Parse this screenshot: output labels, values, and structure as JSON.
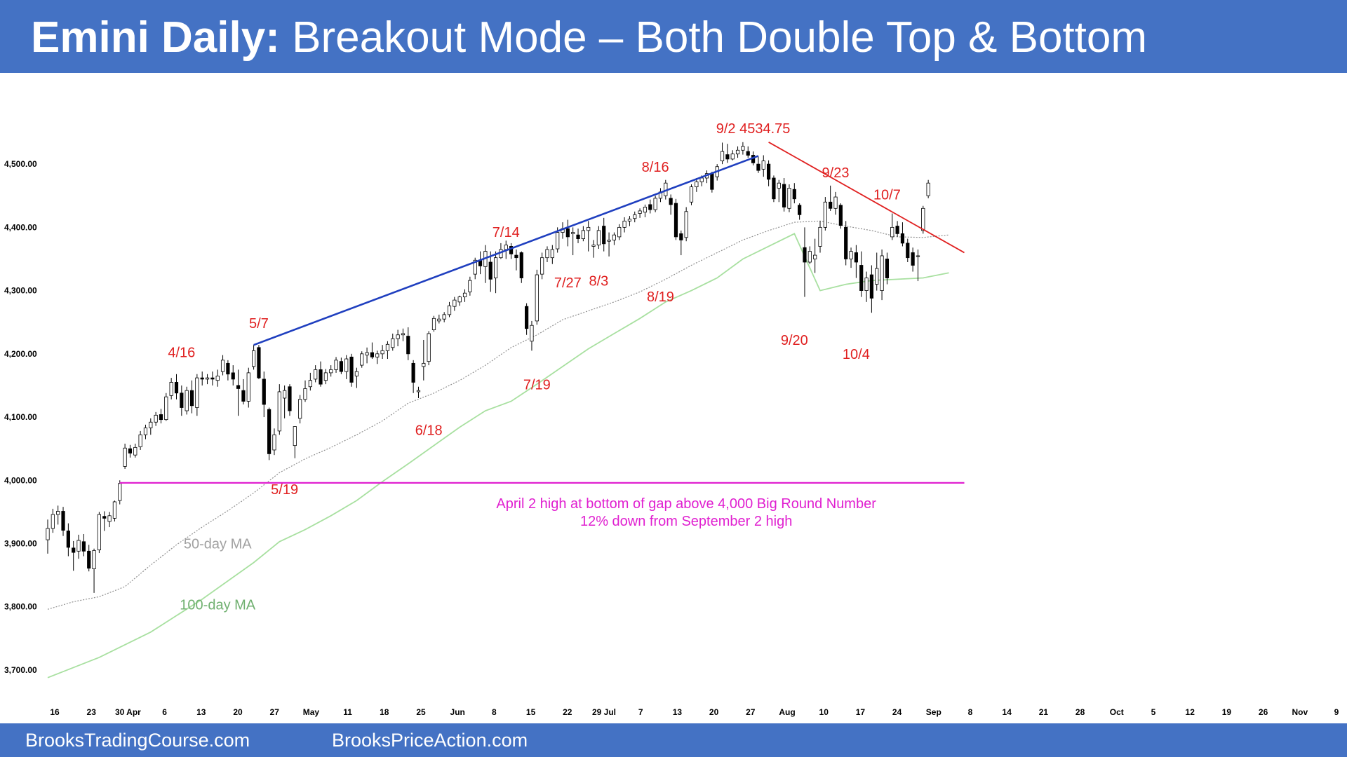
{
  "header": {
    "title_bold": "Emini Daily:",
    "title_rest": " Breakout Mode – Both Double Top & Bottom"
  },
  "footer": {
    "left": "BrooksTradingCourse.com",
    "right": "BrooksPriceAction.com"
  },
  "colors": {
    "header_bg": "#4472c4",
    "bull_candle": "#ffffff",
    "bear_candle": "#000000",
    "ma50": "#909090",
    "ma100": "#a8e0a0",
    "upper_trendline": "#1f3fbf",
    "down_trendline": "#e02020",
    "support_line": "#e020d0",
    "annotation": "#e02020"
  },
  "chart_data": {
    "type": "candlestick",
    "title": "",
    "xlabel": "",
    "ylabel": "",
    "ylim": [
      3680,
      4560
    ],
    "y_ticks": [
      "3,700.00",
      "3,800.00",
      "3,900.00",
      "4,000.00",
      "4,100.00",
      "4,200.00",
      "4,300.00",
      "4,400.00",
      "4,500.00"
    ],
    "y_tick_values": [
      3700,
      3800,
      3900,
      4000,
      4100,
      4200,
      4300,
      4400,
      4500
    ],
    "x_ticks": [
      "16",
      "23",
      "30 Apr",
      "6",
      "13",
      "20",
      "27",
      "May",
      "11",
      "18",
      "25",
      "Jun",
      "8",
      "15",
      "22",
      "29 Jul",
      "7",
      "13",
      "20",
      "27",
      "Aug",
      "10",
      "17",
      "24",
      "Sep",
      "8",
      "14",
      "21",
      "28",
      "Oct",
      "5",
      "12",
      "19",
      "26",
      "Nov",
      "9"
    ],
    "grid": false,
    "candles": [
      [
        3906,
        3938,
        3884,
        3924
      ],
      [
        3924,
        3955,
        3917,
        3946
      ],
      [
        3946,
        3960,
        3930,
        3951
      ],
      [
        3951,
        3958,
        3912,
        3921
      ],
      [
        3920,
        3932,
        3880,
        3894
      ],
      [
        3893,
        3904,
        3857,
        3886
      ],
      [
        3888,
        3914,
        3876,
        3905
      ],
      [
        3903,
        3915,
        3880,
        3888
      ],
      [
        3888,
        3898,
        3856,
        3861
      ],
      [
        3860,
        3892,
        3822,
        3889
      ],
      [
        3890,
        3950,
        3885,
        3946
      ],
      [
        3943,
        3951,
        3920,
        3940
      ],
      [
        3935,
        3950,
        3926,
        3944
      ],
      [
        3940,
        3968,
        3935,
        3966
      ],
      [
        3968,
        4000,
        3962,
        3995
      ],
      [
        4022,
        4058,
        4018,
        4051
      ],
      [
        4050,
        4056,
        4036,
        4043
      ],
      [
        4040,
        4058,
        4036,
        4052
      ],
      [
        4053,
        4078,
        4048,
        4072
      ],
      [
        4072,
        4088,
        4065,
        4083
      ],
      [
        4083,
        4098,
        4072,
        4092
      ],
      [
        4092,
        4108,
        4086,
        4103
      ],
      [
        4104,
        4113,
        4090,
        4096
      ],
      [
        4096,
        4138,
        4094,
        4132
      ],
      [
        4134,
        4162,
        4128,
        4155
      ],
      [
        4155,
        4168,
        4128,
        4138
      ],
      [
        4138,
        4150,
        4102,
        4115
      ],
      [
        4110,
        4148,
        4104,
        4142
      ],
      [
        4142,
        4158,
        4106,
        4118
      ],
      [
        4115,
        4168,
        4102,
        4162
      ],
      [
        4162,
        4172,
        4150,
        4160
      ],
      [
        4160,
        4168,
        4152,
        4162
      ],
      [
        4162,
        4172,
        4150,
        4160
      ],
      [
        4158,
        4175,
        4148,
        4165
      ],
      [
        4172,
        4198,
        4166,
        4190
      ],
      [
        4185,
        4190,
        4158,
        4168
      ],
      [
        4170,
        4182,
        4150,
        4160
      ],
      [
        4150,
        4175,
        4102,
        4145
      ],
      [
        4142,
        4160,
        4120,
        4125
      ],
      [
        4125,
        4178,
        4115,
        4170
      ],
      [
        4180,
        4214,
        4175,
        4205
      ],
      [
        4210,
        4214,
        4160,
        4162
      ],
      [
        4160,
        4172,
        4100,
        4120
      ],
      [
        4112,
        4115,
        4032,
        4042
      ],
      [
        4048,
        4082,
        4040,
        4072
      ],
      [
        4078,
        4152,
        4072,
        4140
      ],
      [
        4130,
        4150,
        4098,
        4142
      ],
      [
        4148,
        4152,
        4102,
        4110
      ],
      [
        4055,
        4078,
        4035,
        4085
      ],
      [
        4098,
        4135,
        4090,
        4128
      ],
      [
        4128,
        4158,
        4124,
        4145
      ],
      [
        4148,
        4170,
        4142,
        4158
      ],
      [
        4160,
        4182,
        4155,
        4175
      ],
      [
        4175,
        4188,
        4148,
        4152
      ],
      [
        4158,
        4176,
        4152,
        4170
      ],
      [
        4170,
        4182,
        4164,
        4175
      ],
      [
        4175,
        4195,
        4170,
        4190
      ],
      [
        4188,
        4194,
        4168,
        4172
      ],
      [
        4172,
        4198,
        4160,
        4192
      ],
      [
        4195,
        4200,
        4148,
        4155
      ],
      [
        4165,
        4178,
        4146,
        4172
      ],
      [
        4182,
        4204,
        4178,
        4200
      ],
      [
        4198,
        4210,
        4185,
        4202
      ],
      [
        4202,
        4218,
        4192,
        4195
      ],
      [
        4195,
        4205,
        4184,
        4200
      ],
      [
        4200,
        4214,
        4192,
        4205
      ],
      [
        4205,
        4220,
        4192,
        4215
      ],
      [
        4210,
        4232,
        4205,
        4224
      ],
      [
        4224,
        4238,
        4212,
        4230
      ],
      [
        4230,
        4240,
        4220,
        4232
      ],
      [
        4228,
        4242,
        4190,
        4200
      ],
      [
        4185,
        4190,
        4138,
        4155
      ],
      [
        4140,
        4148,
        4130,
        4142
      ],
      [
        4180,
        4222,
        4158,
        4185
      ],
      [
        4188,
        4236,
        4182,
        4232
      ],
      [
        4238,
        4260,
        4235,
        4256
      ],
      [
        4252,
        4262,
        4248,
        4255
      ],
      [
        4255,
        4266,
        4250,
        4262
      ],
      [
        4262,
        4282,
        4258,
        4276
      ],
      [
        4275,
        4290,
        4268,
        4285
      ],
      [
        4282,
        4292,
        4276,
        4290
      ],
      [
        4290,
        4302,
        4282,
        4296
      ],
      [
        4298,
        4322,
        4292,
        4316
      ],
      [
        4326,
        4352,
        4318,
        4348
      ],
      [
        4348,
        4362,
        4326,
        4339
      ],
      [
        4338,
        4372,
        4312,
        4362
      ],
      [
        4345,
        4362,
        4298,
        4318
      ],
      [
        4320,
        4362,
        4296,
        4352
      ],
      [
        4352,
        4375,
        4350,
        4365
      ],
      [
        4365,
        4379,
        4350,
        4372
      ],
      [
        4370,
        4375,
        4350,
        4358
      ],
      [
        4356,
        4365,
        4332,
        4352
      ],
      [
        4360,
        4362,
        4312,
        4320
      ],
      [
        4275,
        4280,
        4230,
        4240
      ],
      [
        4220,
        4252,
        4205,
        4245
      ],
      [
        4252,
        4333,
        4246,
        4325
      ],
      [
        4326,
        4360,
        4318,
        4352
      ],
      [
        4352,
        4370,
        4345,
        4365
      ],
      [
        4352,
        4372,
        4342,
        4365
      ],
      [
        4366,
        4400,
        4360,
        4392
      ],
      [
        4392,
        4408,
        4382,
        4398
      ],
      [
        4398,
        4412,
        4370,
        4385
      ],
      [
        4390,
        4400,
        4356,
        4392
      ],
      [
        4388,
        4398,
        4375,
        4382
      ],
      [
        4382,
        4402,
        4378,
        4395
      ],
      [
        4395,
        4410,
        4362,
        4400
      ],
      [
        4370,
        4380,
        4352,
        4372
      ],
      [
        4372,
        4402,
        4366,
        4395
      ],
      [
        4402,
        4415,
        4362,
        4374
      ],
      [
        4378,
        4392,
        4354,
        4380
      ],
      [
        4380,
        4392,
        4372,
        4388
      ],
      [
        4385,
        4405,
        4380,
        4400
      ],
      [
        4400,
        4416,
        4392,
        4410
      ],
      [
        4410,
        4418,
        4402,
        4413
      ],
      [
        4414,
        4425,
        4408,
        4420
      ],
      [
        4422,
        4430,
        4415,
        4426
      ],
      [
        4424,
        4436,
        4416,
        4432
      ],
      [
        4436,
        4444,
        4422,
        4428
      ],
      [
        4428,
        4450,
        4424,
        4446
      ],
      [
        4446,
        4462,
        4440,
        4456
      ],
      [
        4450,
        4475,
        4444,
        4470
      ],
      [
        4446,
        4452,
        4420,
        4436
      ],
      [
        4438,
        4445,
        4380,
        4385
      ],
      [
        4390,
        4395,
        4356,
        4380
      ],
      [
        4384,
        4432,
        4378,
        4425
      ],
      [
        4440,
        4468,
        4435,
        4464
      ],
      [
        4464,
        4478,
        4456,
        4472
      ],
      [
        4472,
        4482,
        4465,
        4478
      ],
      [
        4478,
        4490,
        4470,
        4485
      ],
      [
        4485,
        4488,
        4455,
        4460
      ],
      [
        4480,
        4500,
        4474,
        4496
      ],
      [
        4505,
        4534,
        4500,
        4520
      ],
      [
        4515,
        4532,
        4502,
        4508
      ],
      [
        4508,
        4522,
        4506,
        4516
      ],
      [
        4516,
        4528,
        4510,
        4522
      ],
      [
        4522,
        4534.75,
        4515,
        4528
      ],
      [
        4520,
        4528,
        4510,
        4514
      ],
      [
        4514,
        4520,
        4498,
        4502
      ],
      [
        4500,
        4512,
        4486,
        4490
      ],
      [
        4492,
        4514,
        4480,
        4505
      ],
      [
        4500,
        4506,
        4465,
        4476
      ],
      [
        4478,
        4482,
        4440,
        4445
      ],
      [
        4462,
        4475,
        4440,
        4470
      ],
      [
        4468,
        4478,
        4425,
        4432
      ],
      [
        4430,
        4468,
        4424,
        4462
      ],
      [
        4460,
        4470,
        4438,
        4445
      ],
      [
        4435,
        4438,
        4412,
        4420
      ],
      [
        4368,
        4400,
        4290,
        4345
      ],
      [
        4345,
        4370,
        4342,
        4362
      ],
      [
        4350,
        4382,
        4328,
        4356
      ],
      [
        4370,
        4410,
        4360,
        4400
      ],
      [
        4400,
        4448,
        4395,
        4440
      ],
      [
        4440,
        4466,
        4426,
        4430
      ],
      [
        4430,
        4456,
        4420,
        4448
      ],
      [
        4435,
        4438,
        4398,
        4403
      ],
      [
        4400,
        4410,
        4340,
        4350
      ],
      [
        4350,
        4368,
        4336,
        4362
      ],
      [
        4360,
        4372,
        4320,
        4345
      ],
      [
        4340,
        4362,
        4290,
        4300
      ],
      [
        4300,
        4330,
        4282,
        4320
      ],
      [
        4325,
        4340,
        4265,
        4288
      ],
      [
        4310,
        4360,
        4300,
        4335
      ],
      [
        4300,
        4365,
        4285,
        4355
      ],
      [
        4350,
        4360,
        4310,
        4320
      ],
      [
        4385,
        4422,
        4380,
        4400
      ],
      [
        4402,
        4410,
        4385,
        4390
      ],
      [
        4390,
        4408,
        4370,
        4375
      ],
      [
        4375,
        4382,
        4345,
        4352
      ],
      [
        4360,
        4368,
        4330,
        4340
      ],
      [
        4355,
        4365,
        4315,
        4355
      ],
      [
        4395,
        4434,
        4390,
        4430
      ],
      [
        4450,
        4475,
        4446,
        4470
      ]
    ],
    "ma50": [
      [
        0,
        3796
      ],
      [
        5,
        3808
      ],
      [
        10,
        3816
      ],
      [
        15,
        3832
      ],
      [
        20,
        3866
      ],
      [
        25,
        3898
      ],
      [
        30,
        3926
      ],
      [
        35,
        3952
      ],
      [
        40,
        3980
      ],
      [
        45,
        4012
      ],
      [
        50,
        4034
      ],
      [
        55,
        4052
      ],
      [
        60,
        4072
      ],
      [
        65,
        4094
      ],
      [
        70,
        4122
      ],
      [
        75,
        4138
      ],
      [
        80,
        4158
      ],
      [
        85,
        4182
      ],
      [
        90,
        4210
      ],
      [
        95,
        4230
      ],
      [
        100,
        4254
      ],
      [
        105,
        4268
      ],
      [
        110,
        4282
      ],
      [
        115,
        4298
      ],
      [
        120,
        4318
      ],
      [
        125,
        4340
      ],
      [
        130,
        4360
      ],
      [
        135,
        4380
      ],
      [
        140,
        4395
      ],
      [
        145,
        4408
      ],
      [
        150,
        4410
      ],
      [
        155,
        4402
      ],
      [
        160,
        4395
      ],
      [
        165,
        4385
      ],
      [
        170,
        4384
      ],
      [
        175,
        4388
      ]
    ],
    "ma100": [
      [
        0,
        3688
      ],
      [
        10,
        3720
      ],
      [
        20,
        3760
      ],
      [
        30,
        3812
      ],
      [
        40,
        3870
      ],
      [
        45,
        3903
      ],
      [
        50,
        3922
      ],
      [
        55,
        3944
      ],
      [
        60,
        3968
      ],
      [
        65,
        3998
      ],
      [
        70,
        4026
      ],
      [
        75,
        4055
      ],
      [
        80,
        4084
      ],
      [
        85,
        4110
      ],
      [
        90,
        4125
      ],
      [
        95,
        4152
      ],
      [
        100,
        4180
      ],
      [
        105,
        4208
      ],
      [
        110,
        4232
      ],
      [
        115,
        4256
      ],
      [
        120,
        4282
      ],
      [
        125,
        4300
      ],
      [
        130,
        4320
      ],
      [
        135,
        4350
      ],
      [
        140,
        4370
      ],
      [
        145,
        4390
      ],
      [
        150,
        4300
      ],
      [
        155,
        4310
      ],
      [
        160,
        4316
      ],
      [
        165,
        4318
      ],
      [
        170,
        4320
      ],
      [
        175,
        4328
      ]
    ],
    "lines": {
      "upper_trendline": {
        "start": [
          40,
          4214
        ],
        "end": [
          138,
          4513
        ]
      },
      "down_trendline": {
        "start": [
          140,
          4534.75
        ],
        "end": [
          178,
          4360
        ]
      },
      "support_line": {
        "start": [
          14,
          3996
        ],
        "end": [
          178,
          3996
        ]
      }
    },
    "annotations": [
      {
        "text": "4/16",
        "x": 26,
        "y": 4195
      },
      {
        "text": "5/7",
        "x": 41,
        "y": 4241
      },
      {
        "text": "5/19",
        "x": 46,
        "y": 3978
      },
      {
        "text": "6/18",
        "x": 74,
        "y": 4072
      },
      {
        "text": "7/14",
        "x": 89,
        "y": 4385
      },
      {
        "text": "7/19",
        "x": 95,
        "y": 4144
      },
      {
        "text": "7/27",
        "x": 101,
        "y": 4305
      },
      {
        "text": "8/3",
        "x": 107,
        "y": 4308
      },
      {
        "text": "8/16",
        "x": 118,
        "y": 4488
      },
      {
        "text": "8/19",
        "x": 119,
        "y": 4283
      },
      {
        "text": "9/2 4534.75",
        "x": 137,
        "y": 4549
      },
      {
        "text": "9/20",
        "x": 145,
        "y": 4214
      },
      {
        "text": "9/23",
        "x": 153,
        "y": 4479
      },
      {
        "text": "10/4",
        "x": 157,
        "y": 4192
      },
      {
        "text": "10/7",
        "x": 163,
        "y": 4444
      },
      {
        "text": "April 2 high at bottom of gap above 4,000 Big Round Number",
        "x": 124,
        "y": 3956
      },
      {
        "text": "12% down from September 2 high",
        "x": 124,
        "y": 3928
      }
    ],
    "ma_labels": [
      {
        "text": "50-day MA",
        "x": 33,
        "y": 3892
      },
      {
        "text": "100-day MA",
        "x": 33,
        "y": 3796
      }
    ]
  }
}
